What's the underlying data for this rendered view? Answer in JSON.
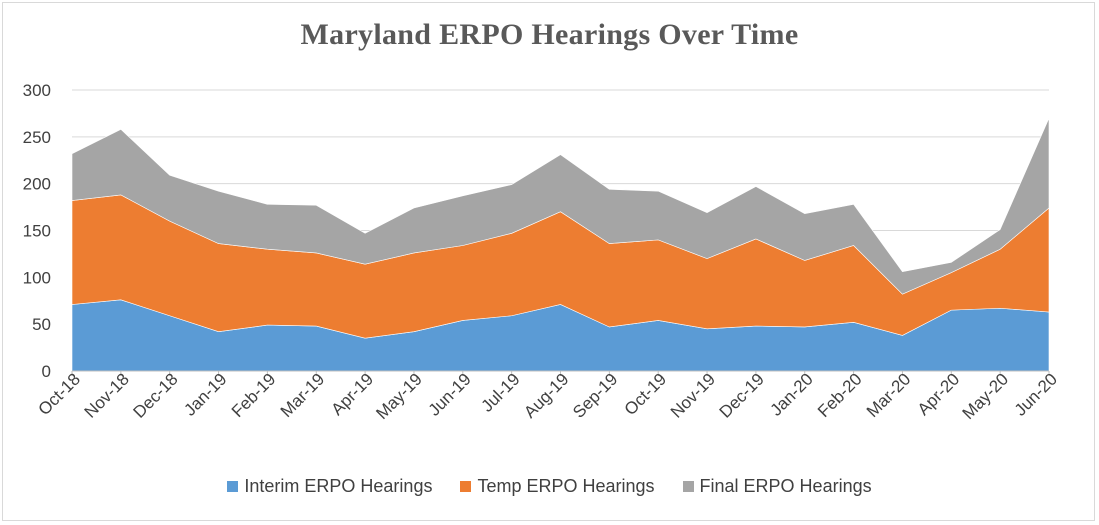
{
  "chart_data": {
    "type": "area",
    "stacked": true,
    "title": "Maryland ERPO Hearings Over Time",
    "xlabel": "",
    "ylabel": "",
    "ylim": [
      0,
      300
    ],
    "yticks": [
      "0",
      "50",
      "100",
      "150",
      "200",
      "250",
      "300"
    ],
    "grid": true,
    "legend_position": "bottom",
    "categories": [
      "Oct-18",
      "Nov-18",
      "Dec-18",
      "Jan-19",
      "Feb-19",
      "Mar-19",
      "Apr-19",
      "May-19",
      "Jun-19",
      "Jul-19",
      "Aug-19",
      "Sep-19",
      "Oct-19",
      "Nov-19",
      "Dec-19",
      "Jan-20",
      "Feb-20",
      "Mar-20",
      "Apr-20",
      "May-20",
      "Jun-20"
    ],
    "series": [
      {
        "name": "Interim ERPO Hearings",
        "color": "#5b9bd5",
        "values": [
          71,
          76,
          59,
          42,
          49,
          48,
          35,
          42,
          54,
          59,
          71,
          47,
          54,
          45,
          48,
          47,
          52,
          38,
          65,
          67,
          63
        ]
      },
      {
        "name": "Temp ERPO Hearings",
        "color": "#ed7d31",
        "values": [
          111,
          112,
          101,
          94,
          81,
          78,
          79,
          84,
          80,
          88,
          99,
          89,
          86,
          75,
          93,
          71,
          82,
          44,
          40,
          63,
          111
        ]
      },
      {
        "name": "Final ERPO Hearings",
        "color": "#a5a5a5",
        "values": [
          50,
          70,
          49,
          56,
          48,
          51,
          33,
          48,
          53,
          52,
          61,
          58,
          52,
          49,
          56,
          50,
          44,
          24,
          11,
          21,
          96
        ]
      }
    ]
  }
}
